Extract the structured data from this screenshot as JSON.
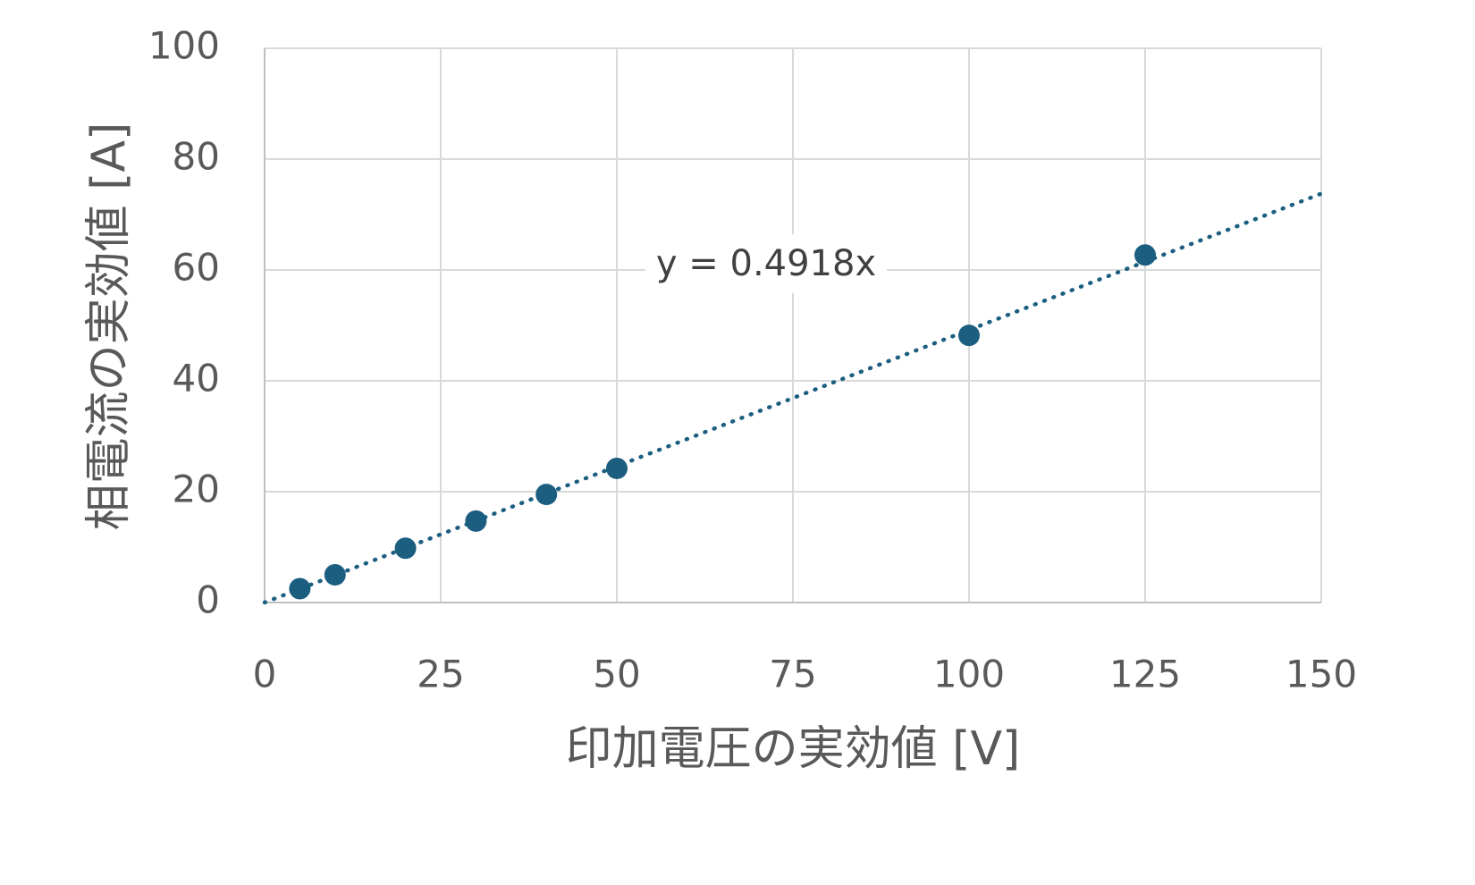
{
  "chart_data": {
    "type": "scatter",
    "x": [
      5,
      10,
      20,
      30,
      40,
      50,
      100,
      125
    ],
    "y": [
      2.5,
      5.0,
      9.8,
      14.7,
      19.5,
      24.2,
      48.2,
      62.7
    ],
    "xlabel": "印加電圧の実効値 [V]",
    "ylabel": "相電流の実効値 [A]",
    "xlim": [
      0,
      150
    ],
    "ylim": [
      0,
      100
    ],
    "xticks": [
      "0",
      "25",
      "50",
      "75",
      "100",
      "125",
      "150"
    ],
    "yticks": [
      "0",
      "20",
      "40",
      "60",
      "80",
      "100"
    ],
    "xtick_values": [
      0,
      25,
      50,
      75,
      100,
      125,
      150
    ],
    "ytick_values": [
      0,
      20,
      40,
      60,
      80,
      100
    ],
    "trendline": {
      "type": "linear-through-origin",
      "slope": 0.4918,
      "equation": "y = 0.4918x",
      "style": "dotted"
    },
    "grid": true,
    "legend": "none",
    "colors": {
      "marker": "#1b5e80",
      "trendline": "#1b5e80",
      "grid": "#d9d9d9",
      "text": "#595959"
    }
  }
}
